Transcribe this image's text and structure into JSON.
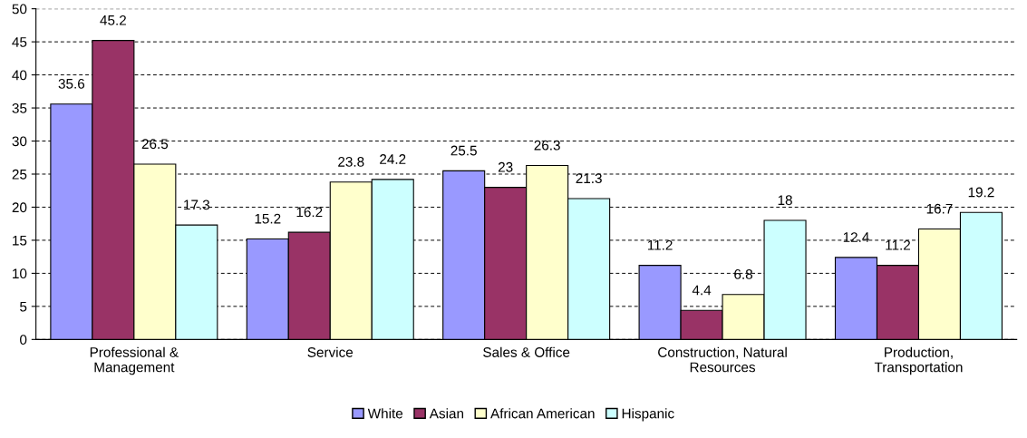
{
  "chart_data": {
    "type": "bar",
    "categories": [
      "Professional &\nManagement",
      "Service",
      "Sales & Office",
      "Construction, Natural\nResources",
      "Production,\nTransportation"
    ],
    "series": [
      {
        "name": "White",
        "color": "#9999ff",
        "values": [
          35.6,
          15.2,
          25.5,
          11.2,
          12.4
        ]
      },
      {
        "name": "Asian",
        "color": "#993366",
        "values": [
          45.2,
          16.2,
          23,
          4.4,
          11.2
        ]
      },
      {
        "name": "African American",
        "color": "#ffffcc",
        "values": [
          26.5,
          23.8,
          26.3,
          6.8,
          16.7
        ]
      },
      {
        "name": "Hispanic",
        "color": "#ccffff",
        "values": [
          17.3,
          24.2,
          21.3,
          18,
          19.2
        ]
      }
    ],
    "ylim": [
      0,
      50
    ],
    "yticks": [
      0,
      5,
      10,
      15,
      20,
      25,
      30,
      35,
      40,
      45,
      50
    ],
    "grid": "y",
    "legend": "bottom",
    "data_labels": true
  }
}
